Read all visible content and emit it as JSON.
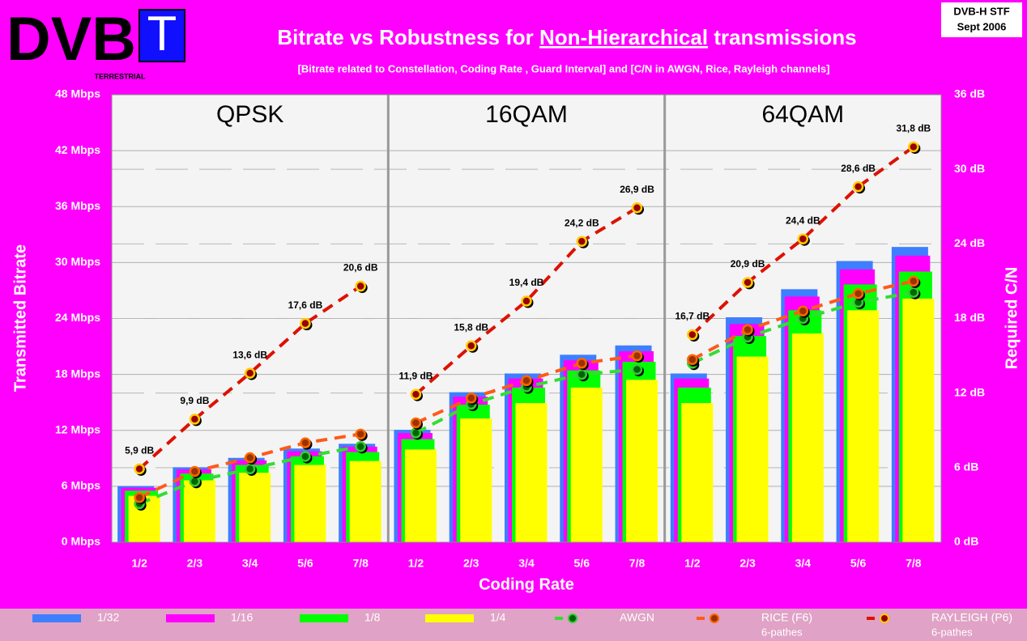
{
  "header": {
    "logo": {
      "main": "DVB",
      "letter": "T",
      "sub": "TERRESTRIAL"
    },
    "badge": [
      "DVB-H STF",
      "Sept 2006"
    ]
  },
  "chart_data": {
    "type": "bar",
    "title": "Bitrate vs Robustness for",
    "title_emphasis": "Non-Hierarchical",
    "title_end": "transmissions",
    "subtitle": "[Bitrate related to Constellation, Coding Rate , Guard Interval]  and  [C/N in AWGN, Rice, Rayleigh channels]",
    "x_label": "Coding Rate",
    "y_label": "Transmitted Bitrate",
    "y2_label": "Required C/N",
    "groups": [
      "QPSK",
      "16QAM",
      "64QAM"
    ],
    "categories": [
      "1/2",
      "2/3",
      "3/4",
      "5/6",
      "7/8",
      "1/2",
      "2/3",
      "3/4",
      "5/6",
      "7/8",
      "1/2",
      "2/3",
      "3/4",
      "5/6",
      "7/8"
    ],
    "ylim": [
      0,
      48
    ],
    "yticks": [
      {
        "value": 0,
        "label": "0 Mbps"
      },
      {
        "value": 6,
        "label": "6 Mbps"
      },
      {
        "value": 12,
        "label": "12 Mbps"
      },
      {
        "value": 18,
        "label": "18 Mbps"
      },
      {
        "value": 24,
        "label": "24 Mbps"
      },
      {
        "value": 30,
        "label": "30 Mbps"
      },
      {
        "value": 36,
        "label": "36 Mbps"
      },
      {
        "value": 42,
        "label": "42 Mbps"
      },
      {
        "value": 48,
        "label": "48 Mbps"
      }
    ],
    "y2lim": [
      0,
      36
    ],
    "y2ticks": [
      {
        "value": 0,
        "label": "0 dB"
      },
      {
        "value": 6,
        "label": "6 dB"
      },
      {
        "value": 12,
        "label": "12 dB"
      },
      {
        "value": 18,
        "label": "18 dB"
      },
      {
        "value": 24,
        "label": "24 dB"
      },
      {
        "value": 30,
        "label": "30 dB"
      },
      {
        "value": 36,
        "label": "36 dB"
      }
    ],
    "grid": true,
    "series": [
      {
        "name": "1/32",
        "type": "bar",
        "color": "#3d7fff",
        "values": [
          6.03,
          8.04,
          9.05,
          10.05,
          10.56,
          12.06,
          16.09,
          18.1,
          20.11,
          21.11,
          18.1,
          24.13,
          27.14,
          30.16,
          31.67
        ]
      },
      {
        "name": "1/16",
        "type": "bar",
        "color": "#ff00ff",
        "values": [
          5.85,
          7.81,
          8.78,
          9.76,
          10.25,
          11.71,
          15.61,
          17.56,
          19.52,
          20.49,
          17.56,
          23.42,
          26.35,
          29.27,
          30.74
        ]
      },
      {
        "name": "1/8",
        "type": "bar",
        "color": "#00ff00",
        "values": [
          5.53,
          7.37,
          8.29,
          9.22,
          9.68,
          11.06,
          14.75,
          16.59,
          18.43,
          19.35,
          16.59,
          22.12,
          24.88,
          27.65,
          29.03
        ]
      },
      {
        "name": "1/4",
        "type": "bar",
        "color": "#ffff00",
        "values": [
          4.98,
          6.64,
          7.46,
          8.29,
          8.71,
          9.95,
          13.27,
          14.93,
          16.59,
          17.42,
          14.93,
          19.91,
          22.39,
          24.88,
          26.13
        ]
      },
      {
        "name": "AWGN",
        "type": "line",
        "axis": "y2",
        "color": "#33dd33",
        "marker_color": "#006600",
        "marker_edge": "#33cc33",
        "values": [
          3.1,
          4.9,
          5.9,
          6.9,
          7.7,
          8.8,
          11.1,
          12.5,
          13.5,
          13.9,
          14.4,
          16.5,
          18.0,
          19.3,
          20.1
        ]
      },
      {
        "name": "RICE (F6)",
        "note": "6-pathes",
        "type": "line",
        "axis": "y2",
        "color": "#ff5a1a",
        "marker_color": "#993300",
        "marker_edge": "#ff6600",
        "values": [
          3.6,
          5.7,
          6.8,
          8.0,
          8.7,
          9.6,
          11.6,
          13.0,
          14.4,
          15.0,
          14.7,
          17.1,
          18.6,
          20.0,
          21.0
        ]
      },
      {
        "name": "RAYLEIGH (P6)",
        "note": "6-pathes",
        "type": "line",
        "axis": "y2",
        "color": "#dd1100",
        "marker_color": "#990000",
        "marker_edge": "#ffcc00",
        "values": [
          5.9,
          9.9,
          13.6,
          17.6,
          20.6,
          11.9,
          15.8,
          19.4,
          24.2,
          26.9,
          16.7,
          20.9,
          24.4,
          28.6,
          31.8
        ],
        "value_labels": [
          "5,9 dB",
          "9,9 dB",
          "13,6 dB",
          "17,6 dB",
          "20,6 dB",
          "11,9 dB",
          "15,8 dB",
          "19,4 dB",
          "24,2 dB",
          "26,9 dB",
          "16,7 dB",
          "20,9 dB",
          "24,4 dB",
          "28,6 dB",
          "31,8 dB"
        ]
      }
    ]
  }
}
